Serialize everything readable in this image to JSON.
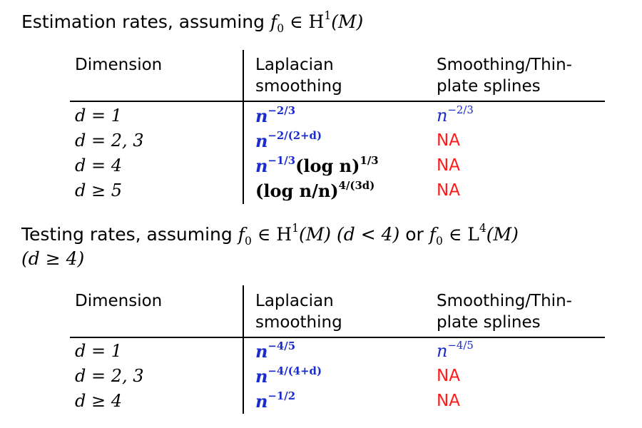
{
  "estimation": {
    "heading_text": "Estimation rates, assuming",
    "heading_math": "f",
    "heading_math_sub": "0",
    "heading_math_rest": " ∈ H",
    "heading_math_sup": "1",
    "heading_math_end": "(M)",
    "columns": {
      "dimension": "Dimension",
      "laplacian_line1": "Laplacian",
      "laplacian_line2": "smoothing",
      "splines_line1": "Smoothing/Thin-",
      "splines_line2": "plate splines"
    },
    "rows": [
      {
        "dim": "d = 1",
        "lap_base": "n",
        "lap_exp": "−2/3",
        "spl_base": "n",
        "spl_exp": "−2/3"
      },
      {
        "dim": "d = 2, 3",
        "lap_base": "n",
        "lap_exp": "−2/(2+d)",
        "spl": "NA"
      },
      {
        "dim": "d = 4",
        "lap_base": "n",
        "lap_exp": "−1/3",
        "lap_tail": "(log n)",
        "lap_tail_exp": "1/3",
        "spl": "NA"
      },
      {
        "dim": "d ≥ 5",
        "lap_base": "(log n/n)",
        "lap_exp": "4/(3d)",
        "spl": "NA"
      }
    ]
  },
  "testing": {
    "heading_line1_text": "Testing rates, assuming",
    "heading_m1": "f",
    "heading_m1_sub": "0",
    "heading_m1_rest": " ∈ H",
    "heading_m1_sup": "1",
    "heading_m1_end": "(M) (d < 4)",
    "heading_or": "or",
    "heading_m2": "f",
    "heading_m2_sub": "0",
    "heading_m2_rest": " ∈ L",
    "heading_m2_sup": "4",
    "heading_m2_end": "(M)",
    "heading_line2": "(d ≥ 4)",
    "columns": {
      "dimension": "Dimension",
      "laplacian_line1": "Laplacian",
      "laplacian_line2": "smoothing",
      "splines_line1": "Smoothing/Thin-",
      "splines_line2": "plate splines"
    },
    "rows": [
      {
        "dim": "d = 1",
        "lap_base": "n",
        "lap_exp": "−4/5",
        "spl_base": "n",
        "spl_exp": "−4/5"
      },
      {
        "dim": "d = 2, 3",
        "lap_base": "n",
        "lap_exp": "−4/(4+d)",
        "spl": "NA"
      },
      {
        "dim": "d ≥ 4",
        "lap_base": "n",
        "lap_exp": "−1/2",
        "spl": "NA"
      }
    ]
  }
}
